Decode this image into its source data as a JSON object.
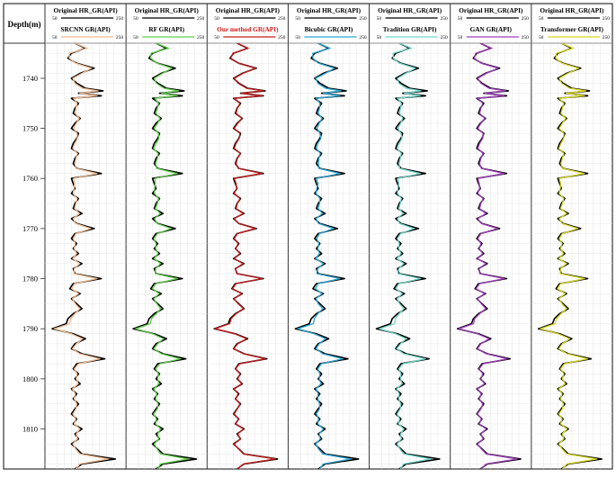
{
  "chart_data": {
    "type": "line",
    "depth_axis": {
      "label": "Depth(m)",
      "ticks": [
        1740,
        1750,
        1760,
        1770,
        1780,
        1790,
        1800,
        1810
      ],
      "range": [
        1733,
        1818
      ]
    },
    "gr_scale": {
      "min": 50,
      "max": 250,
      "min_label": "50",
      "max_label": "250"
    },
    "reference_label": "Original HR_GR(API)",
    "reference_color": "#000000",
    "reference_curve": {
      "depth": [
        1733,
        1734,
        1735,
        1736,
        1737,
        1738,
        1739,
        1740,
        1741,
        1742,
        1742.5,
        1743,
        1743.5,
        1744,
        1745,
        1746,
        1747,
        1748,
        1749,
        1750,
        1751,
        1752,
        1753,
        1754,
        1755,
        1756,
        1757,
        1758,
        1759,
        1760,
        1761,
        1762,
        1763,
        1764,
        1765,
        1766,
        1767,
        1768,
        1769,
        1770,
        1771,
        1772,
        1773,
        1774,
        1775,
        1776,
        1777,
        1778,
        1779,
        1780,
        1781,
        1782,
        1783,
        1784,
        1785,
        1786,
        1787,
        1788,
        1789,
        1790,
        1791,
        1792,
        1793,
        1794,
        1795,
        1796,
        1797,
        1798,
        1799,
        1800,
        1801,
        1802,
        1803,
        1804,
        1805,
        1806,
        1807,
        1808,
        1809,
        1810,
        1811,
        1812,
        1813,
        1814,
        1815,
        1816,
        1817,
        1818
      ],
      "gr": [
        120,
        150,
        110,
        100,
        125,
        175,
        135,
        110,
        125,
        150,
        200,
        130,
        195,
        110,
        130,
        120,
        115,
        135,
        120,
        110,
        130,
        125,
        115,
        110,
        130,
        120,
        115,
        125,
        195,
        110,
        115,
        120,
        110,
        130,
        120,
        115,
        140,
        110,
        125,
        175,
        120,
        110,
        125,
        115,
        130,
        110,
        140,
        115,
        120,
        195,
        115,
        105,
        135,
        110,
        125,
        140,
        115,
        100,
        95,
        55,
        115,
        150,
        120,
        110,
        140,
        205,
        125,
        115,
        130,
        120,
        135,
        110,
        125,
        115,
        130,
        120,
        110,
        125,
        115,
        140,
        120,
        130,
        110,
        125,
        140,
        235,
        140,
        120
      ]
    },
    "panels": [
      {
        "name": "SRCNN GR(API)",
        "color": "#f2b98d",
        "label_color": "#000000",
        "dx": [
          0,
          5,
          -6,
          4,
          -3,
          -8,
          5,
          4,
          -5,
          -8,
          -14,
          4,
          -12,
          6,
          -4,
          3,
          6,
          -3,
          4,
          6,
          -4,
          2,
          5,
          4,
          -3,
          3,
          5,
          -2,
          -12,
          6,
          4,
          -3,
          5,
          -4,
          3,
          4,
          -7,
          5,
          -3,
          -10,
          3,
          5,
          -4,
          3,
          -5,
          4,
          -6,
          3,
          -3,
          -12,
          4,
          6,
          -5,
          3,
          -4,
          -6,
          5,
          8,
          10,
          6,
          -5,
          -8,
          4,
          3,
          -6,
          -14,
          5,
          3,
          -4,
          4,
          -6,
          3,
          -4,
          3,
          -5,
          3,
          4,
          -3,
          3,
          -6,
          4,
          -3,
          4,
          -3,
          -6,
          -20,
          -6,
          3
        ]
      },
      {
        "name": "RF GR(API)",
        "color": "#5fcf4a",
        "label_color": "#000000",
        "dx": [
          0,
          6,
          -4,
          5,
          -2,
          -10,
          4,
          5,
          -4,
          -7,
          -16,
          6,
          -14,
          7,
          -3,
          4,
          5,
          -4,
          5,
          5,
          -3,
          3,
          6,
          3,
          -4,
          4,
          4,
          -3,
          -14,
          7,
          3,
          -4,
          6,
          -3,
          4,
          3,
          -8,
          6,
          -2,
          -12,
          4,
          4,
          -5,
          4,
          -4,
          5,
          -7,
          4,
          -2,
          -14,
          5,
          5,
          -6,
          4,
          -3,
          -7,
          6,
          7,
          9,
          7,
          -4,
          -9,
          5,
          4,
          -5,
          -16,
          6,
          4,
          -3,
          5,
          -7,
          4,
          -3,
          4,
          -4,
          4,
          3,
          -4,
          4,
          -7,
          5,
          -2,
          5,
          -2,
          -7,
          -24,
          -7,
          4
        ]
      },
      {
        "name": "Our method GR(API)",
        "color": "#c81c1c",
        "label_color": "#d01818",
        "dx": [
          0,
          2,
          -2,
          2,
          -1,
          -3,
          2,
          2,
          -2,
          -3,
          -5,
          2,
          -4,
          2,
          -2,
          1,
          2,
          -1,
          2,
          2,
          -2,
          1,
          2,
          2,
          -1,
          1,
          2,
          -1,
          -4,
          2,
          2,
          -1,
          2,
          -2,
          1,
          2,
          -3,
          2,
          -1,
          -4,
          1,
          2,
          -2,
          1,
          -2,
          2,
          -3,
          1,
          -1,
          -4,
          2,
          2,
          -2,
          1,
          -2,
          -2,
          2,
          3,
          4,
          2,
          -2,
          -3,
          2,
          1,
          -2,
          -5,
          2,
          1,
          -2,
          2,
          -2,
          1,
          -2,
          1,
          -2,
          1,
          2,
          -1,
          1,
          -2,
          2,
          -1,
          2,
          -1,
          -2,
          -6,
          -2,
          1
        ]
      },
      {
        "name": "Bicubic GR(API)",
        "color": "#2aa7d6",
        "label_color": "#000000",
        "dx": [
          0,
          4,
          -5,
          5,
          -4,
          -9,
          6,
          3,
          -6,
          -9,
          -15,
          5,
          -13,
          5,
          -5,
          4,
          5,
          -4,
          3,
          7,
          -5,
          3,
          4,
          5,
          -4,
          2,
          6,
          -3,
          -13,
          5,
          5,
          -4,
          4,
          -5,
          4,
          5,
          -8,
          4,
          -4,
          -11,
          4,
          6,
          -3,
          4,
          -6,
          3,
          -5,
          4,
          -4,
          -13,
          5,
          7,
          -4,
          4,
          -5,
          -7,
          4,
          9,
          11,
          7,
          -6,
          -9,
          3,
          4,
          -7,
          -15,
          4,
          4,
          -5,
          3,
          -7,
          4,
          -5,
          4,
          -6,
          4,
          5,
          -4,
          4,
          -5,
          3,
          -4,
          3,
          -4,
          -7,
          -22,
          -5,
          4
        ]
      },
      {
        "name": "Tradition GR(API)",
        "color": "#6fd6c9",
        "label_color": "#000000",
        "dx": [
          0,
          5,
          -7,
          3,
          -4,
          -9,
          4,
          5,
          -6,
          -10,
          -18,
          5,
          -15,
          5,
          -4,
          4,
          6,
          -5,
          4,
          6,
          -5,
          3,
          5,
          4,
          -4,
          3,
          5,
          -4,
          -15,
          6,
          4,
          -4,
          5,
          -4,
          3,
          4,
          -9,
          5,
          -4,
          -13,
          4,
          5,
          -5,
          4,
          -5,
          4,
          -7,
          4,
          -4,
          -15,
          4,
          6,
          -6,
          4,
          -4,
          -7,
          5,
          9,
          12,
          8,
          -5,
          -10,
          4,
          3,
          -7,
          -10,
          6,
          4,
          -5,
          4,
          -7,
          3,
          -5,
          4,
          -6,
          3,
          4,
          -4,
          3,
          -7,
          4,
          -4,
          4,
          -3,
          -7,
          -25,
          -7,
          3
        ]
      },
      {
        "name": "GAN GR(API)",
        "color": "#a33fbf",
        "label_color": "#000000",
        "dx": [
          0,
          3,
          -3,
          3,
          -2,
          -5,
          3,
          3,
          -3,
          -5,
          -8,
          3,
          -7,
          3,
          -3,
          2,
          3,
          -2,
          2,
          3,
          -2,
          2,
          3,
          3,
          -2,
          2,
          3,
          -2,
          -7,
          3,
          2,
          -2,
          3,
          -2,
          2,
          3,
          -4,
          3,
          -2,
          -6,
          2,
          3,
          -3,
          2,
          -3,
          2,
          -4,
          2,
          -2,
          -7,
          3,
          3,
          -3,
          2,
          -2,
          -4,
          3,
          4,
          6,
          4,
          -3,
          -5,
          2,
          2,
          -3,
          -8,
          3,
          2,
          -3,
          2,
          -3,
          2,
          -2,
          2,
          -3,
          2,
          2,
          -2,
          2,
          -3,
          2,
          -2,
          2,
          -2,
          -3,
          -10,
          -3,
          2
        ]
      },
      {
        "name": "Transformer GR(API)",
        "color": "#d8d820",
        "label_color": "#000000",
        "dx": [
          0,
          4,
          -4,
          4,
          -3,
          -6,
          4,
          4,
          -4,
          -6,
          -10,
          4,
          -9,
          4,
          -3,
          3,
          4,
          -3,
          3,
          4,
          -3,
          2,
          4,
          3,
          -3,
          3,
          4,
          -2,
          -9,
          4,
          3,
          -3,
          4,
          -3,
          3,
          3,
          -5,
          4,
          -3,
          -8,
          3,
          4,
          -3,
          3,
          -4,
          3,
          -5,
          3,
          -3,
          -9,
          3,
          4,
          -4,
          3,
          -3,
          -5,
          4,
          6,
          7,
          5,
          -4,
          -6,
          3,
          3,
          -4,
          -10,
          4,
          3,
          -3,
          3,
          -4,
          3,
          -3,
          3,
          -4,
          3,
          3,
          -3,
          3,
          -4,
          3,
          -3,
          3,
          -3,
          -4,
          -14,
          -4,
          3
        ]
      }
    ]
  }
}
